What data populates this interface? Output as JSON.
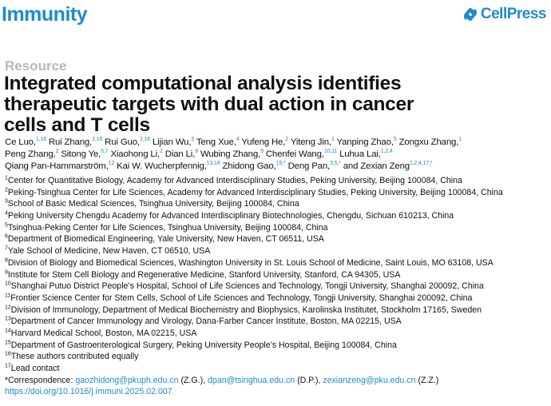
{
  "header": {
    "journal": "Immunity",
    "publisher": "CellPress",
    "brand_color": "#1d8ccb"
  },
  "article_type": "Resource",
  "title_lines": [
    "Integrated computational analysis identifies",
    "therapeutic targets with dual action in cancer",
    "cells and T cells"
  ],
  "authors": [
    [
      {
        "name": "Ce Luo,",
        "sup": "1,16"
      },
      {
        "name": "Rui Zhang,",
        "sup": "2,16"
      },
      {
        "name": "Rui Guo,",
        "sup": "2,16"
      },
      {
        "name": "Lijian Wu,",
        "sup": "3"
      },
      {
        "name": "Teng Xue,",
        "sup": "4"
      },
      {
        "name": "Yufeng He,",
        "sup": "2"
      },
      {
        "name": "Yiteng Jin,",
        "sup": "1"
      },
      {
        "name": "Yanping Zhao,",
        "sup": "5"
      },
      {
        "name": "Zongxu Zhang,",
        "sup": "1"
      }
    ],
    [
      {
        "name": "Peng Zhang,",
        "sup": "2"
      },
      {
        "name": "Sitong Ye,",
        "sup": "6,7"
      },
      {
        "name": "Xiaohong Li,",
        "sup": "2"
      },
      {
        "name": "Dian Li,",
        "sup": "8"
      },
      {
        "name": "Wubing Zhang,",
        "sup": "9"
      },
      {
        "name": "Chenfei Wang,",
        "sup": "10,11"
      },
      {
        "name": "Luhua Lai,",
        "sup": "1,2,4"
      }
    ],
    [
      {
        "name": "Qiang Pan-Hammarström,",
        "sup": "12"
      },
      {
        "name": "Kai W. Wucherpfennig,",
        "sup": "13,14"
      },
      {
        "name": "Zhidong Gao,",
        "sup": "15,*"
      },
      {
        "name": "Deng Pan,",
        "sup": "3,5,*"
      },
      {
        "name": "and Zexian Zeng",
        "sup": "1,2,4,17,*"
      }
    ]
  ],
  "affiliations": [
    {
      "n": "1",
      "text": "Center for Quantitative Biology, Academy for Advanced Interdisciplinary Studies, Peking University, Beijing 100084, China"
    },
    {
      "n": "2",
      "text": "Peking-Tsinghua Center for Life Sciences, Academy for Advanced Interdisciplinary Studies, Peking University, Beijing 100084, China"
    },
    {
      "n": "3",
      "text": "School of Basic Medical Sciences, Tsinghua University, Beijing 100084, China"
    },
    {
      "n": "4",
      "text": "Peking University Chengdu Academy for Advanced Interdisciplinary Biotechnologies, Chengdu, Sichuan 610213, China"
    },
    {
      "n": "5",
      "text": "Tsinghua-Peking Center for Life Sciences, Tsinghua University, Beijing 100084, China"
    },
    {
      "n": "6",
      "text": "Department of Biomedical Engineering, Yale University, New Haven, CT 06511, USA"
    },
    {
      "n": "7",
      "text": "Yale School of Medicine, New Haven, CT 06510, USA"
    },
    {
      "n": "8",
      "text": "Division of Biology and Biomedical Sciences, Washington University in St. Louis School of Medicine, Saint Louis, MO 63108, USA"
    },
    {
      "n": "9",
      "text": "Institute for Stem Cell Biology and Regenerative Medicine, Stanford University, Stanford, CA 94305, USA"
    },
    {
      "n": "10",
      "text": "Shanghai Putuo District People’s Hospital, School of Life Sciences and Technology, Tongji University, Shanghai 200092, China"
    },
    {
      "n": "11",
      "text": "Frontier Science Center for Stem Cells, School of Life Sciences and Technology, Tongji University, Shanghai 200092, China"
    },
    {
      "n": "12",
      "text": "Division of Immunology, Department of Medical Biochemistry and Biophysics, Karolinska Institutet, Stockholm 17165, Sweden"
    },
    {
      "n": "13",
      "text": "Department of Cancer Immunology and Virology, Dana-Farber Cancer Institute, Boston, MA 02215, USA"
    },
    {
      "n": "14",
      "text": "Harvard Medical School, Boston, MA 02215, USA"
    },
    {
      "n": "15",
      "text": "Department of Gastroenterological Surgery, Peking University People’s Hospital, Beijing 100084, China"
    },
    {
      "n": "16",
      "text": "These authors contributed equally"
    },
    {
      "n": "17",
      "text": "Lead contact"
    }
  ],
  "correspondence": {
    "label": "*Correspondence:",
    "emails": [
      {
        "email": "gaozhidong@pkuph.edu.cn",
        "who": "(Z.G.),"
      },
      {
        "email": "dpan@tsinghua.edu.cn",
        "who": "(D.P.),"
      },
      {
        "email": "zexianzeng@pku.edu.cn",
        "who": "(Z.Z.)"
      }
    ]
  },
  "doi": "https://doi.org/10.1016/j.immuni.2025.02.007"
}
